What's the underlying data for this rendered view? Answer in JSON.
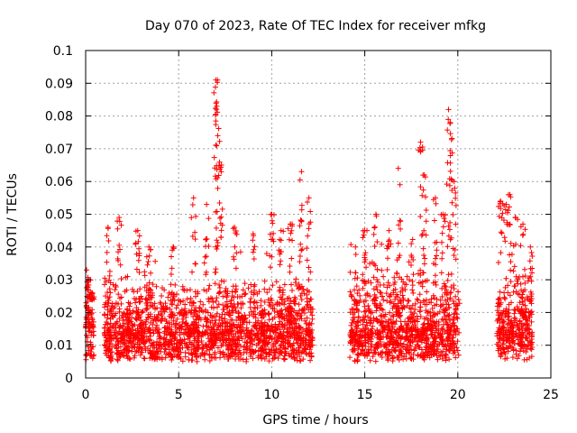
{
  "chart_data": {
    "type": "scatter",
    "title": "Day 070 of 2023, Rate Of TEC Index for receiver mfkg",
    "xlabel": "GPS time / hours",
    "ylabel": "ROTI / TECUs",
    "xlim": [
      0,
      25
    ],
    "ylim": [
      0,
      0.1
    ],
    "xticks": [
      "0",
      "5",
      "10",
      "15",
      "20",
      "25"
    ],
    "yticks": [
      "0",
      "0.01",
      "0.02",
      "0.03",
      "0.04",
      "0.05",
      "0.06",
      "0.07",
      "0.08",
      "0.09",
      "0.1"
    ],
    "grid": true,
    "marker": "plus",
    "color": "#ff0000",
    "series": [
      {
        "segments": [
          {
            "x_start": 0.0,
            "x_end": 0.45,
            "base": 0.012,
            "spread": 0.018,
            "peaks": [
              [
                0.05,
                0.033
              ],
              [
                0.2,
                0.03
              ],
              [
                0.35,
                0.026
              ]
            ]
          },
          {
            "x_start": 1.0,
            "x_end": 12.2,
            "base": 0.011,
            "spread": 0.016,
            "peaks": [
              [
                1.2,
                0.046
              ],
              [
                1.8,
                0.049
              ],
              [
                2.8,
                0.045
              ],
              [
                3.4,
                0.04
              ],
              [
                4.7,
                0.04
              ],
              [
                5.8,
                0.055
              ],
              [
                6.5,
                0.053
              ],
              [
                7.0,
                0.091
              ],
              [
                7.05,
                0.083
              ],
              [
                7.1,
                0.074
              ],
              [
                7.3,
                0.065
              ],
              [
                8.0,
                0.046
              ],
              [
                9.0,
                0.044
              ],
              [
                10.0,
                0.05
              ],
              [
                10.5,
                0.045
              ],
              [
                11.0,
                0.047
              ],
              [
                11.6,
                0.063
              ],
              [
                12.0,
                0.055
              ]
            ]
          },
          {
            "x_start": 14.2,
            "x_end": 20.1,
            "base": 0.011,
            "spread": 0.017,
            "peaks": [
              [
                14.5,
                0.04
              ],
              [
                15.0,
                0.045
              ],
              [
                15.6,
                0.05
              ],
              [
                16.3,
                0.045
              ],
              [
                16.8,
                0.064
              ],
              [
                17.5,
                0.041
              ],
              [
                18.0,
                0.072
              ],
              [
                18.2,
                0.062
              ],
              [
                18.8,
                0.055
              ],
              [
                19.2,
                0.05
              ],
              [
                19.5,
                0.082
              ],
              [
                19.6,
                0.078
              ],
              [
                19.8,
                0.06
              ]
            ]
          },
          {
            "x_start": 22.1,
            "x_end": 24.0,
            "base": 0.012,
            "spread": 0.016,
            "peaks": [
              [
                22.3,
                0.054
              ],
              [
                22.6,
                0.053
              ],
              [
                22.8,
                0.056
              ],
              [
                23.1,
                0.049
              ],
              [
                23.5,
                0.047
              ],
              [
                23.9,
                0.04
              ]
            ]
          }
        ]
      }
    ]
  }
}
